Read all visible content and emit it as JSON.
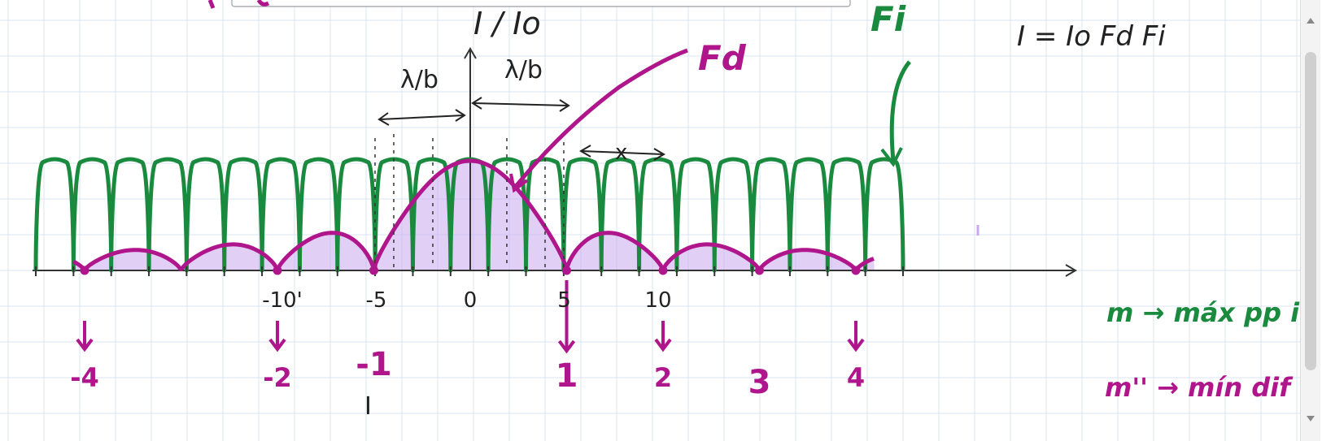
{
  "colors": {
    "grid": "#d9e6f2",
    "axis": "#333333",
    "interference": "#1a8a3e",
    "diffraction": "#b0168c",
    "shade": "#c9a8ef",
    "ink": "#222222",
    "scrollbar": "#d6d6d6"
  },
  "labels": {
    "y_axis": "I / Io",
    "fi": "Fi",
    "fd": "Fd",
    "formula": "I = Io Fd Fi",
    "lambda_b_left": "λ/b",
    "lambda_b_right": "λ/b",
    "x_mark": "x",
    "m_max": "m → máx pp in",
    "m_min": "m'' → mín dif"
  },
  "interference_ticks": [
    {
      "value": -10,
      "label": "-10'"
    },
    {
      "value": -5,
      "label": "-5"
    },
    {
      "value": 0,
      "label": "0"
    },
    {
      "value": 5,
      "label": "5"
    },
    {
      "value": 10,
      "label": "10"
    }
  ],
  "diffraction_minima": [
    {
      "m": -4,
      "label": "-4",
      "arrow": true
    },
    {
      "m": -2,
      "label": "-2",
      "arrow": true
    },
    {
      "m": -1,
      "label": "-1",
      "arrow": false
    },
    {
      "m": 1,
      "label": "1",
      "arrow": true
    },
    {
      "m": 2,
      "label": "2",
      "arrow": true
    },
    {
      "m": 3,
      "label": "3",
      "arrow": false
    },
    {
      "m": 4,
      "label": "4",
      "arrow": true
    }
  ]
}
